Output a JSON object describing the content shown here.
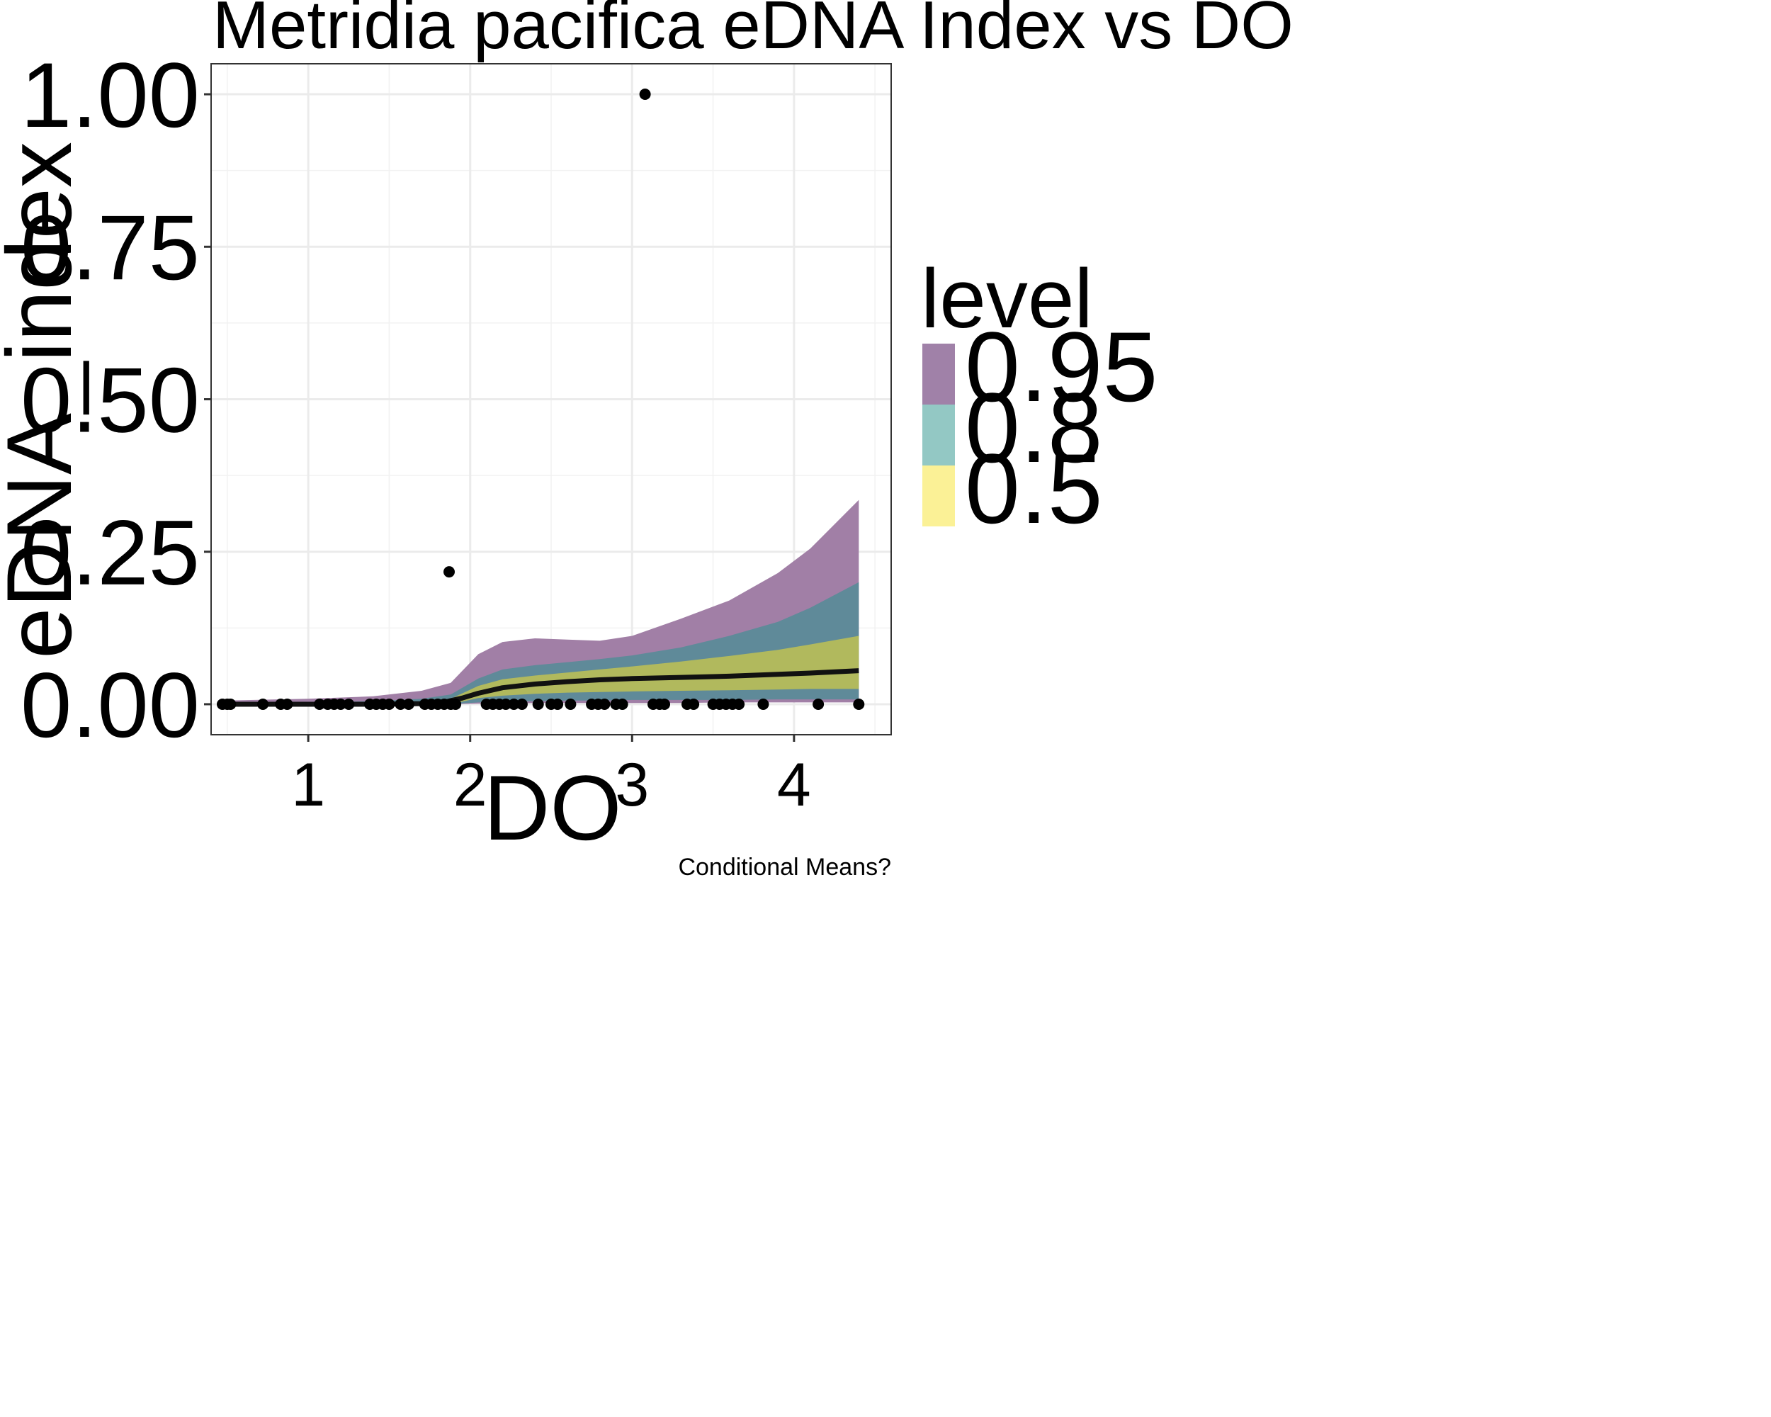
{
  "chart_data": {
    "type": "line",
    "title": "Metridia pacifica eDNA Index vs DO",
    "xlabel": "DO",
    "ylabel": "eDNA_index",
    "caption": "Conditional Means?",
    "xlim": [
      0.4,
      4.6
    ],
    "ylim": [
      -0.05,
      1.05
    ],
    "x_ticks": [
      "1",
      "2",
      "3",
      "4"
    ],
    "x_tick_values": [
      1,
      2,
      3,
      4
    ],
    "y_ticks": [
      "0.00",
      "0.25",
      "0.50",
      "0.75",
      "1.00"
    ],
    "y_tick_values": [
      0,
      0.25,
      0.5,
      0.75,
      1.0
    ],
    "grid": true,
    "legend": {
      "title": "level",
      "placement": "right",
      "entries": [
        {
          "label": "0.95",
          "color": "#a081a8"
        },
        {
          "label": "0.8",
          "color": "#93c8c4"
        },
        {
          "label": "0.5",
          "color": "#fbf196"
        }
      ]
    },
    "bands": [
      {
        "level": "0.95",
        "color": "#a17fa6",
        "x": [
          0.5,
          1.0,
          1.4,
          1.7,
          1.88,
          2.05,
          2.2,
          2.4,
          2.6,
          2.8,
          3.0,
          3.3,
          3.6,
          3.9,
          4.1,
          4.4
        ],
        "lower": [
          0,
          0,
          0,
          0,
          0,
          0.001,
          0.001,
          0.002,
          0.002,
          0.002,
          0.002,
          0.002,
          0.003,
          0.003,
          0.003,
          0.003
        ],
        "upper": [
          0.006,
          0.009,
          0.013,
          0.022,
          0.035,
          0.082,
          0.102,
          0.108,
          0.106,
          0.104,
          0.112,
          0.14,
          0.17,
          0.215,
          0.255,
          0.335
        ]
      },
      {
        "level": "0.8",
        "color": "#5f8a99",
        "x": [
          0.5,
          1.0,
          1.4,
          1.7,
          1.88,
          2.05,
          2.2,
          2.4,
          2.6,
          2.8,
          3.0,
          3.3,
          3.6,
          3.9,
          4.1,
          4.4
        ],
        "lower": [
          0,
          0,
          0,
          0,
          0,
          0.003,
          0.004,
          0.005,
          0.006,
          0.006,
          0.007,
          0.007,
          0.007,
          0.008,
          0.008,
          0.008
        ],
        "upper": [
          0.002,
          0.003,
          0.005,
          0.009,
          0.016,
          0.042,
          0.057,
          0.064,
          0.069,
          0.074,
          0.08,
          0.093,
          0.112,
          0.135,
          0.158,
          0.2
        ]
      },
      {
        "level": "0.5",
        "color": "#b1b95d",
        "x": [
          0.5,
          1.0,
          1.4,
          1.7,
          1.88,
          2.05,
          2.2,
          2.4,
          2.6,
          2.8,
          3.0,
          3.3,
          3.6,
          3.9,
          4.1,
          4.4
        ],
        "lower": [
          0,
          0,
          0,
          0,
          0,
          0.01,
          0.014,
          0.017,
          0.019,
          0.02,
          0.021,
          0.022,
          0.023,
          0.024,
          0.025,
          0.025
        ],
        "upper": [
          0.001,
          0.001,
          0.002,
          0.004,
          0.009,
          0.03,
          0.041,
          0.047,
          0.052,
          0.057,
          0.062,
          0.07,
          0.079,
          0.089,
          0.098,
          0.112
        ]
      }
    ],
    "mean_line": {
      "color": "#111111",
      "x": [
        0.5,
        1.0,
        1.4,
        1.7,
        1.85,
        1.95,
        2.05,
        2.2,
        2.4,
        2.6,
        2.8,
        3.0,
        3.3,
        3.6,
        3.9,
        4.1,
        4.4
      ],
      "y": [
        0,
        0,
        0,
        0.001,
        0.004,
        0.01,
        0.018,
        0.027,
        0.033,
        0.037,
        0.04,
        0.042,
        0.044,
        0.046,
        0.049,
        0.051,
        0.055
      ]
    },
    "points": {
      "color": "#000000",
      "x": [
        0.47,
        0.5,
        0.52,
        0.72,
        0.83,
        0.87,
        1.07,
        1.12,
        1.16,
        1.2,
        1.25,
        1.38,
        1.42,
        1.46,
        1.5,
        1.57,
        1.62,
        1.72,
        1.76,
        1.8,
        1.84,
        1.88,
        1.91,
        1.87,
        2.1,
        2.14,
        2.18,
        2.22,
        2.27,
        2.32,
        2.42,
        2.5,
        2.54,
        2.62,
        2.75,
        2.79,
        2.83,
        2.9,
        2.94,
        3.08,
        3.13,
        3.17,
        3.2,
        3.34,
        3.38,
        3.5,
        3.54,
        3.58,
        3.62,
        3.66,
        3.81,
        4.15,
        4.4
      ],
      "y": [
        0,
        0,
        0,
        0,
        0,
        0,
        0,
        0,
        0,
        0,
        0,
        0,
        0,
        0,
        0,
        0,
        0,
        0,
        0,
        0,
        0,
        0,
        0,
        0.217,
        0,
        0,
        0,
        0,
        0,
        0,
        0,
        0,
        0,
        0,
        0,
        0,
        0,
        0,
        0,
        1.0,
        0,
        0,
        0,
        0,
        0,
        0,
        0,
        0,
        0,
        0,
        0,
        0,
        0
      ]
    }
  }
}
